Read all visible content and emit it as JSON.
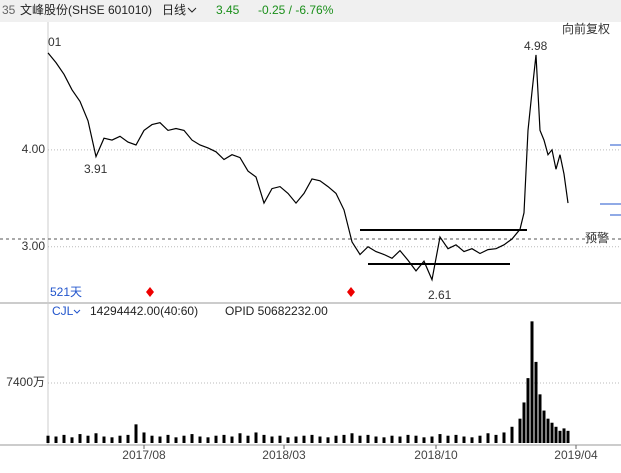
{
  "header": {
    "code": "35",
    "name": "文峰股份(SHSE 601010)",
    "period": "日线",
    "price": "3.45",
    "change": "-0.25 / -6.76%",
    "adjust": "向前复权"
  },
  "chart_data": [
    {
      "type": "line",
      "color": "#000000",
      "x": [
        0,
        2,
        4,
        6,
        8,
        10,
        12,
        14,
        16,
        18,
        20,
        22,
        24,
        26,
        28,
        30,
        32,
        34,
        36,
        38,
        40,
        42,
        44,
        46,
        48,
        50,
        52,
        54,
        56,
        58,
        60,
        62,
        64,
        66,
        68,
        70,
        72,
        74,
        76,
        78,
        80,
        82,
        84,
        86,
        88,
        90,
        92,
        94,
        96,
        98,
        100,
        102,
        104,
        106,
        108,
        110,
        112,
        114,
        116,
        118,
        119,
        120,
        121,
        122,
        123,
        124,
        125,
        126,
        127,
        128,
        129,
        130
      ],
      "values": [
        5.0,
        4.9,
        4.78,
        4.62,
        4.5,
        4.3,
        3.93,
        4.12,
        4.1,
        4.14,
        4.08,
        4.05,
        4.2,
        4.26,
        4.28,
        4.2,
        4.22,
        4.2,
        4.1,
        4.05,
        4.02,
        3.98,
        3.9,
        3.95,
        3.92,
        3.78,
        3.72,
        3.45,
        3.6,
        3.62,
        3.55,
        3.45,
        3.55,
        3.7,
        3.68,
        3.62,
        3.55,
        3.38,
        3.05,
        2.92,
        3.0,
        2.95,
        2.92,
        2.88,
        2.96,
        2.86,
        2.75,
        2.85,
        2.66,
        3.1,
        2.98,
        3.02,
        2.95,
        2.98,
        2.93,
        2.97,
        2.98,
        3.02,
        3.08,
        3.18,
        3.35,
        4.2,
        4.6,
        4.98,
        4.2,
        4.1,
        3.95,
        4.0,
        3.8,
        3.95,
        3.75,
        3.45
      ],
      "xlim": [
        0,
        140
      ],
      "ylim": [
        2.45,
        5.34
      ],
      "yticks": [
        {
          "value": 3,
          "label": "3.00"
        },
        {
          "value": 4,
          "label": "4.00"
        }
      ],
      "annotations": [
        "01",
        "3.91",
        "4.98",
        "2.61",
        "预警",
        "521天"
      ]
    },
    {
      "type": "bar",
      "color": "#000000",
      "indicator": "CJL",
      "indicator_value": "14294442.00(40:60)",
      "opid": "OPID 50682232.00",
      "x": [
        0,
        2,
        4,
        6,
        8,
        10,
        12,
        14,
        16,
        18,
        20,
        22,
        24,
        26,
        28,
        30,
        32,
        34,
        36,
        38,
        40,
        42,
        44,
        46,
        48,
        50,
        52,
        54,
        56,
        58,
        60,
        62,
        64,
        66,
        68,
        70,
        72,
        74,
        76,
        78,
        80,
        82,
        84,
        86,
        88,
        90,
        92,
        94,
        96,
        98,
        100,
        102,
        104,
        106,
        108,
        110,
        112,
        114,
        116,
        118,
        119,
        120,
        121,
        122,
        123,
        124,
        125,
        126,
        127,
        128,
        129,
        130
      ],
      "values": [
        900,
        800,
        1000,
        700,
        1100,
        900,
        1200,
        800,
        700,
        900,
        1000,
        2300,
        1300,
        900,
        800,
        1000,
        700,
        900,
        1100,
        800,
        700,
        900,
        1000,
        800,
        1200,
        900,
        1300,
        1000,
        800,
        900,
        700,
        800,
        900,
        1000,
        800,
        700,
        900,
        1000,
        1200,
        900,
        1000,
        800,
        700,
        900,
        800,
        1000,
        900,
        700,
        800,
        1100,
        900,
        1000,
        800,
        700,
        900,
        1200,
        1000,
        1300,
        2000,
        3000,
        5000,
        8000,
        15000,
        10000,
        6000,
        4000,
        3000,
        2500,
        2000,
        1500,
        1800,
        1500
      ],
      "xlim": [
        0,
        140
      ],
      "ylim": [
        0,
        16400
      ],
      "yticks": [
        {
          "value": 7400,
          "label": "7400万"
        }
      ],
      "xticks": [
        {
          "value": 24,
          "label": "2017/08"
        },
        {
          "value": 59,
          "label": "2018/03"
        },
        {
          "value": 97,
          "label": "2018/10"
        },
        {
          "value": 132,
          "label": "2019/04"
        }
      ]
    }
  ]
}
